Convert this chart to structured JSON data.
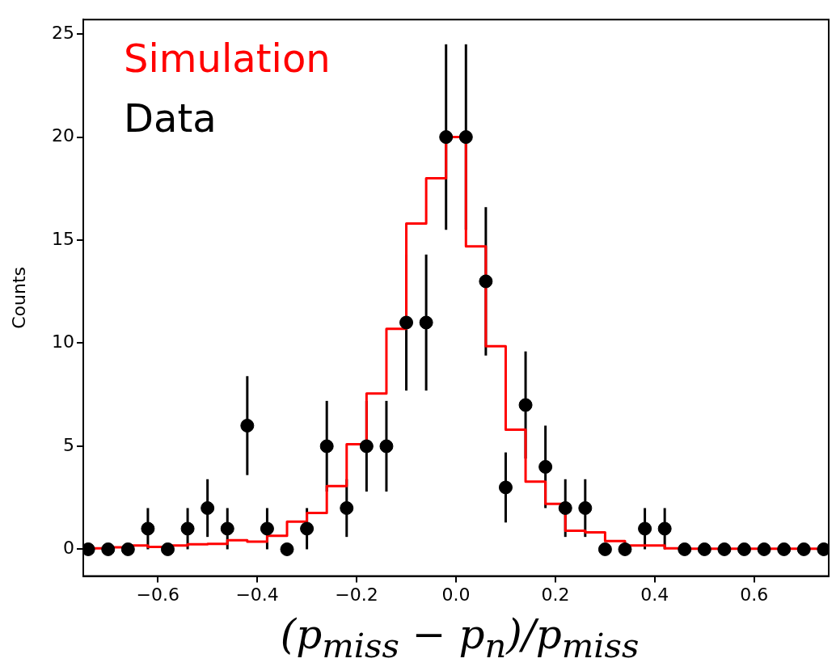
{
  "chart_data": {
    "type": "scatter",
    "xlabel": "(p$_{miss}$ − p$_{n}$)/p$_{miss}$",
    "ylabel": "Counts",
    "xlim": [
      -0.75,
      0.75
    ],
    "xticks": [
      {
        "value": -0.6,
        "label": "−0.6"
      },
      {
        "value": -0.4,
        "label": "−0.4"
      },
      {
        "value": -0.2,
        "label": "−0.2"
      },
      {
        "value": 0,
        "label": "0.0"
      },
      {
        "value": 0.2,
        "label": "0.2"
      },
      {
        "value": 0.4,
        "label": "0.4"
      },
      {
        "value": 0.6,
        "label": "0.6"
      }
    ],
    "ylim": [
      -1.3,
      25.7
    ],
    "yticks": [
      0,
      5,
      10,
      15,
      20,
      25
    ],
    "grid": false,
    "legend": "top left",
    "marker": "circle",
    "series": [
      {
        "name": "Simulation",
        "type": "histogram",
        "color": "#ff0000",
        "bins": [
          -0.74,
          -0.7,
          -0.66,
          -0.62,
          -0.58,
          -0.54,
          -0.5,
          -0.46,
          -0.42,
          -0.38,
          -0.34,
          -0.3,
          -0.26,
          -0.22,
          -0.18,
          -0.14,
          -0.1,
          -0.06,
          -0.02,
          0.02,
          0.06,
          0.1,
          0.14,
          0.18,
          0.22,
          0.26,
          0.3,
          0.34,
          0.38,
          0.42,
          0.46,
          0.5,
          0.54,
          0.58,
          0.62,
          0.66,
          0.7,
          0.74
        ],
        "values": [
          0.05,
          0.1,
          0.18,
          0.12,
          0.18,
          0.24,
          0.26,
          0.44,
          0.37,
          0.66,
          1.34,
          1.76,
          3.07,
          5.1,
          7.56,
          10.7,
          15.8,
          18.0,
          20.0,
          14.7,
          9.85,
          5.8,
          3.28,
          2.2,
          0.9,
          0.82,
          0.4,
          0.18,
          0.18,
          0.05,
          0.03,
          0.03,
          0.03,
          0.03,
          0.03,
          0.03,
          0.03
        ]
      },
      {
        "name": "Data",
        "type": "scatter",
        "color": "#000000",
        "x": [
          -0.74,
          -0.7,
          -0.66,
          -0.62,
          -0.58,
          -0.54,
          -0.5,
          -0.46,
          -0.42,
          -0.38,
          -0.34,
          -0.3,
          -0.26,
          -0.22,
          -0.18,
          -0.14,
          -0.1,
          -0.06,
          -0.02,
          0.02,
          0.06,
          0.1,
          0.14,
          0.18,
          0.22,
          0.26,
          0.3,
          0.34,
          0.38,
          0.42,
          0.46,
          0.5,
          0.54,
          0.58,
          0.62,
          0.66,
          0.7,
          0.74
        ],
        "values": [
          0,
          0,
          0,
          1,
          0,
          1,
          2,
          1,
          6,
          1,
          0,
          1,
          5,
          2,
          5,
          5,
          11,
          11,
          20,
          20,
          13,
          3,
          7,
          4,
          2,
          2,
          0,
          0,
          1,
          1,
          0,
          0,
          0,
          0,
          0,
          0,
          0,
          0
        ],
        "errors": [
          null,
          null,
          null,
          1,
          null,
          1,
          1.4,
          1,
          2.4,
          1,
          null,
          1,
          2.2,
          1.4,
          2.2,
          2.2,
          3.3,
          3.3,
          4.5,
          4.5,
          3.6,
          1.7,
          2.6,
          2,
          1.4,
          1.4,
          null,
          null,
          1,
          1,
          null,
          null,
          null,
          null,
          null,
          null,
          null,
          null
        ]
      }
    ]
  }
}
